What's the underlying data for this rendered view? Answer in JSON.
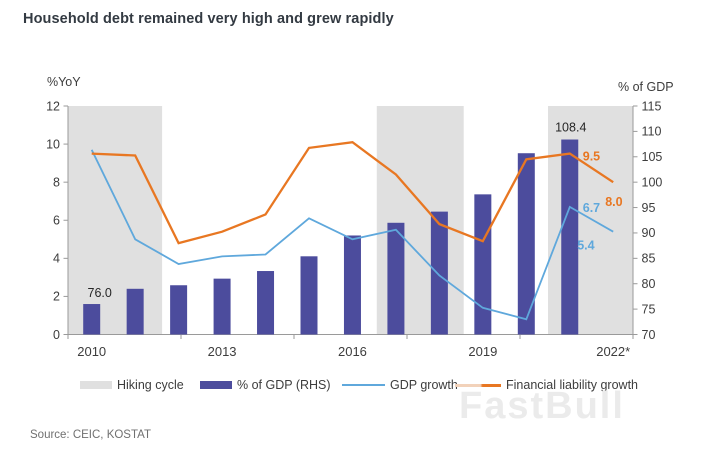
{
  "page": {
    "title": "Household debt remained very high and grew rapidly",
    "source": "Source: CEIC, KOSTAT",
    "watermark": "FastBull"
  },
  "axes": {
    "left_label": "%YoY",
    "right_label": "% of GDP",
    "left_ticks": [
      0,
      2,
      4,
      6,
      8,
      10,
      12
    ],
    "right_ticks": [
      70,
      75,
      80,
      85,
      90,
      95,
      100,
      105,
      110,
      115
    ],
    "x_tick_labels": [
      "2010",
      "2013",
      "2016",
      "2019",
      "2022*"
    ]
  },
  "legend": {
    "items": [
      {
        "label": "Hiking cycle",
        "type": "band",
        "color": "#e0e0e0"
      },
      {
        "label": "% of GDP (RHS)",
        "type": "bar",
        "color": "#4c4c9d"
      },
      {
        "label": "GDP growth",
        "type": "line",
        "color": "#5fa8dc"
      },
      {
        "label": "Financial liability growth",
        "type": "line",
        "color": "#e87722"
      }
    ]
  },
  "chart_data": {
    "type": "combo",
    "categories": [
      "2010",
      "2011",
      "2012",
      "2013",
      "2014",
      "2015",
      "2016",
      "2017",
      "2018",
      "2019",
      "2020",
      "2021",
      "2022*"
    ],
    "series": [
      {
        "key": "pct_gdp",
        "name": "% of GDP (RHS)",
        "type": "bar",
        "axis": "right",
        "color": "#4c4c9d",
        "values": [
          76.0,
          79.0,
          79.7,
          81.0,
          82.5,
          85.4,
          89.5,
          92.0,
          94.2,
          97.6,
          105.7,
          108.4,
          null
        ]
      },
      {
        "key": "gdp",
        "name": "GDP growth",
        "type": "line",
        "axis": "left",
        "color": "#5fa8dc",
        "values": [
          9.7,
          5.0,
          3.7,
          4.1,
          4.2,
          6.1,
          5.0,
          5.5,
          3.1,
          1.4,
          0.8,
          6.7,
          5.4
        ]
      },
      {
        "key": "fin",
        "name": "Financial liability growth",
        "type": "line",
        "axis": "left",
        "color": "#e87722",
        "values": [
          9.5,
          9.4,
          4.8,
          5.4,
          6.3,
          9.8,
          10.1,
          8.4,
          5.8,
          4.9,
          9.2,
          9.5,
          8.0
        ]
      }
    ],
    "hiking_cycles": [
      {
        "from": 2009.45,
        "to": 2011.62
      },
      {
        "from": 2016.56,
        "to": 2018.56
      },
      {
        "from": 2020.5,
        "to": 2022.46
      }
    ],
    "annotations": [
      {
        "text": "76.0",
        "series": "pct_gdp",
        "year": 2010,
        "color": "#262626",
        "bold": false
      },
      {
        "text": "108.4",
        "series": "pct_gdp",
        "year": 2021,
        "color": "#262626",
        "bold": false
      },
      {
        "text": "9.5",
        "series": "fin",
        "year": 2021,
        "color": "#e87722",
        "bold": true
      },
      {
        "text": "8.0",
        "series": "fin",
        "year": 2022,
        "color": "#e87722",
        "bold": true
      },
      {
        "text": "6.7",
        "series": "gdp",
        "year": 2021,
        "color": "#5fa8dc",
        "bold": true
      },
      {
        "text": "5.4",
        "series": "gdp",
        "year": 2022,
        "color": "#5fa8dc",
        "bold": true
      }
    ],
    "left_axis": {
      "label": "%YoY",
      "min": 0,
      "max": 12,
      "tick_step": 2
    },
    "right_axis": {
      "label": "% of GDP",
      "min": 70,
      "max": 115,
      "tick_step": 5
    },
    "grid": false,
    "legend_position": "bottom"
  },
  "style_colors": {
    "axis_line": "#9a9a9a",
    "tick_text": "#3d3d3d",
    "band": "#e0e0e0",
    "annotation_dark": "#262626"
  }
}
